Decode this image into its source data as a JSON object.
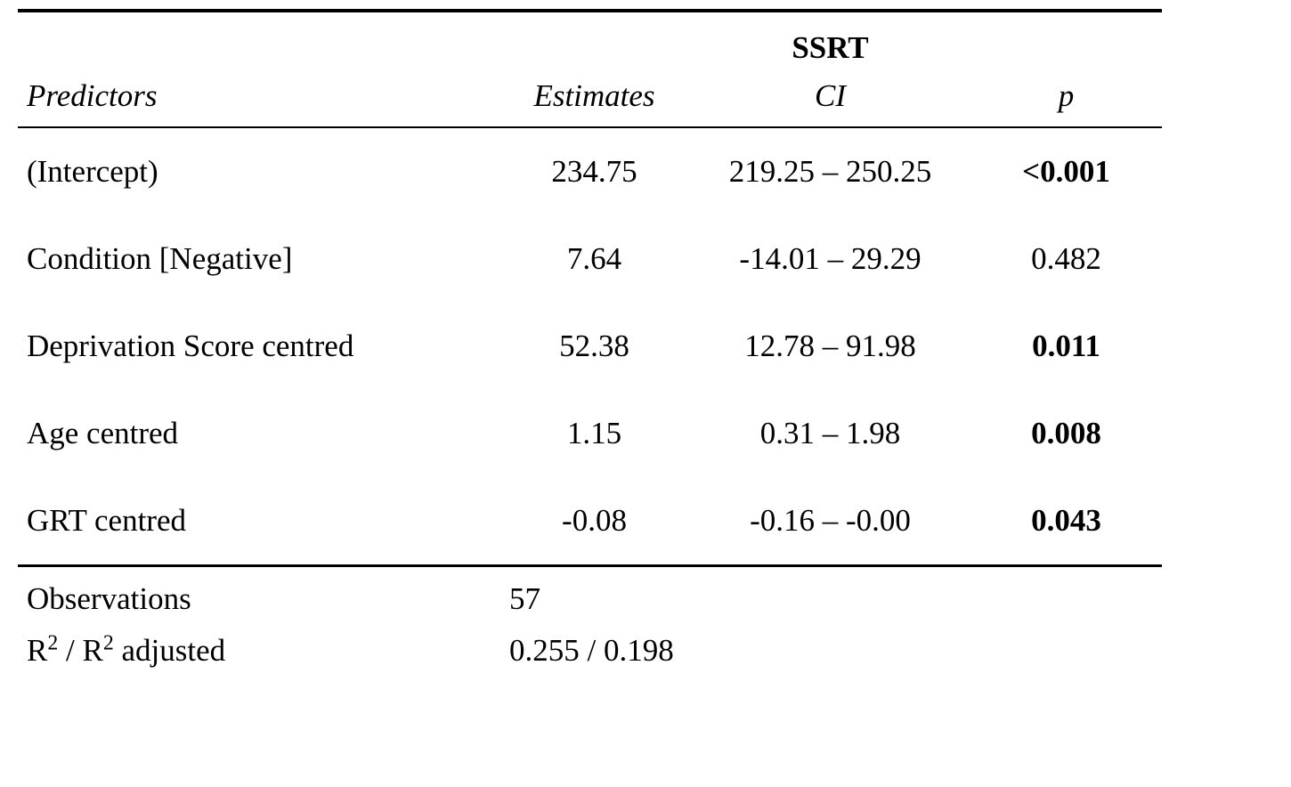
{
  "page": {
    "background": "#ffffff",
    "text_color": "#000000"
  },
  "table": {
    "dependent_variable": "SSRT",
    "columns": {
      "predictors": "Predictors",
      "estimates": "Estimates",
      "ci": "CI",
      "p": "p"
    },
    "rows": [
      {
        "predictor": "(Intercept)",
        "estimate": "234.75",
        "ci": "219.25 – 250.25",
        "p": "<0.001",
        "p_bold": true
      },
      {
        "predictor": "Condition [Negative]",
        "estimate": "7.64",
        "ci": "-14.01 – 29.29",
        "p": "0.482",
        "p_bold": false
      },
      {
        "predictor": "Deprivation Score centred",
        "estimate": "52.38",
        "ci": "12.78 – 91.98",
        "p": "0.011",
        "p_bold": true
      },
      {
        "predictor": "Age centred",
        "estimate": "1.15",
        "ci": "0.31 – 1.98",
        "p": "0.008",
        "p_bold": true
      },
      {
        "predictor": "GRT centred",
        "estimate": "-0.08",
        "ci": "-0.16 – -0.00",
        "p": "0.043",
        "p_bold": true
      }
    ],
    "footer": {
      "observations_label": "Observations",
      "observations_value": "57",
      "r2_label": {
        "base1": "R",
        "sup1": "2",
        "mid": " / R",
        "sup2": "2",
        "tail": " adjusted"
      },
      "r2_value": "0.255 / 0.198"
    }
  }
}
